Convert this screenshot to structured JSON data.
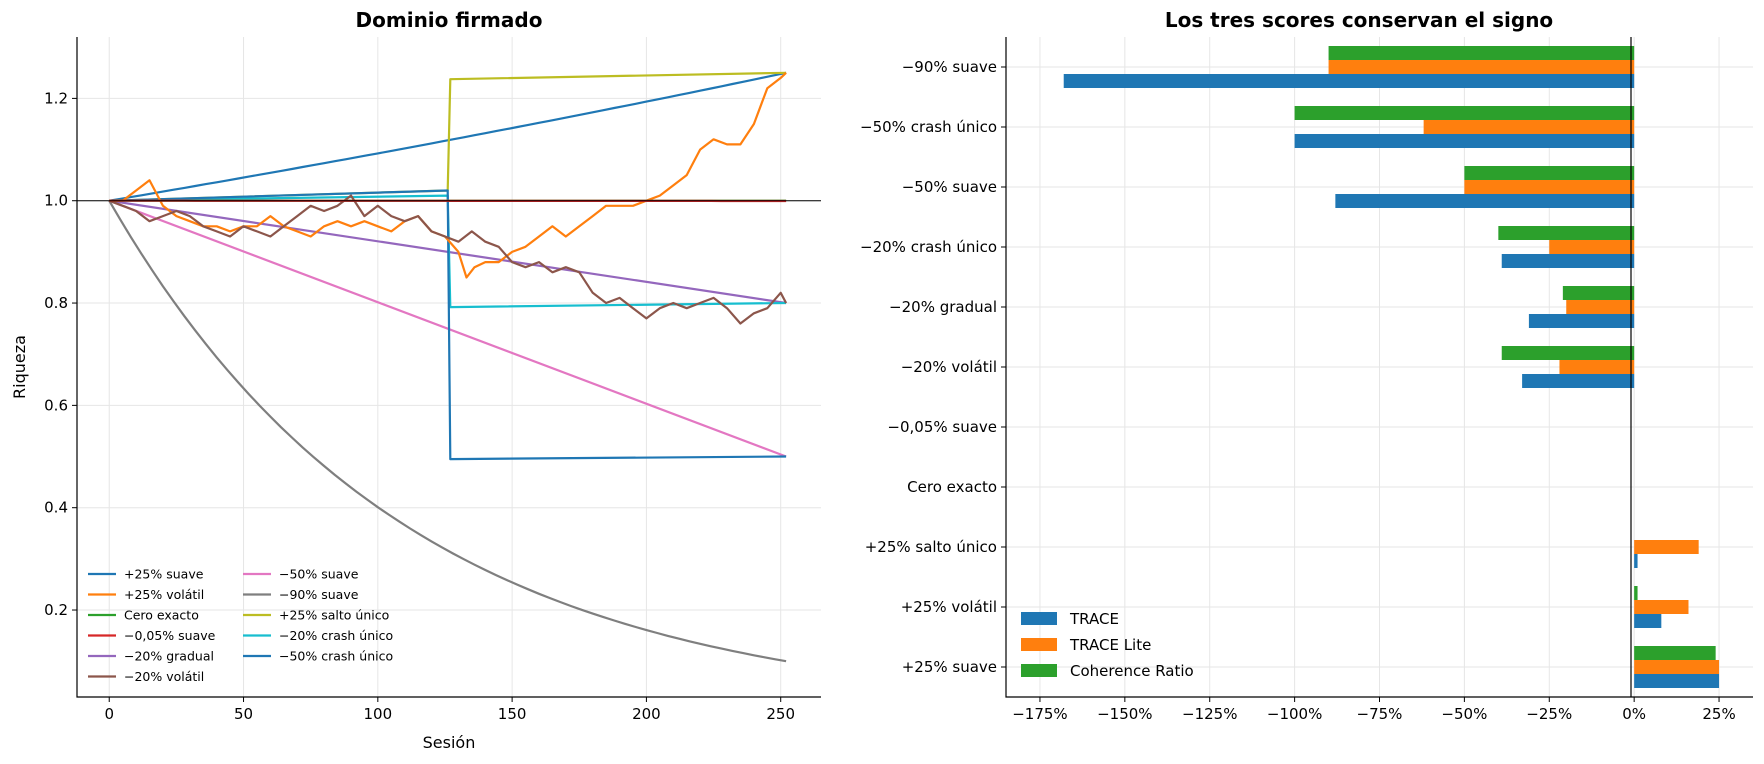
{
  "chart_data": [
    {
      "type": "line",
      "title": "Dominio firmado",
      "xlabel": "Sesión",
      "ylabel": "Riqueza",
      "xlim": [
        -12,
        265
      ],
      "ylim": [
        0.03,
        1.32
      ],
      "xticks": [
        0,
        50,
        100,
        150,
        200,
        250
      ],
      "xtick_labels": [
        "0",
        "50",
        "100",
        "150",
        "200",
        "250"
      ],
      "yticks": [
        0.2,
        0.4,
        0.6,
        0.8,
        1.0,
        1.2
      ],
      "ytick_labels": [
        "0.2",
        "0.4",
        "0.6",
        "0.8",
        "1.0",
        "1.2"
      ],
      "hline": 1.0,
      "grid": true,
      "legend_position": "lower-left",
      "series": [
        {
          "name": "+25% suave",
          "color": "#1f77b4",
          "kind": "exp",
          "end": 1.25
        },
        {
          "name": "+25% volátil",
          "color": "#ff7f0e",
          "kind": "points",
          "points": [
            [
              0,
              1.0
            ],
            [
              5,
              1.0
            ],
            [
              10,
              1.02
            ],
            [
              15,
              1.04
            ],
            [
              20,
              0.99
            ],
            [
              25,
              0.97
            ],
            [
              30,
              0.96
            ],
            [
              35,
              0.95
            ],
            [
              40,
              0.95
            ],
            [
              45,
              0.94
            ],
            [
              50,
              0.95
            ],
            [
              55,
              0.95
            ],
            [
              60,
              0.97
            ],
            [
              65,
              0.95
            ],
            [
              70,
              0.94
            ],
            [
              75,
              0.93
            ],
            [
              80,
              0.95
            ],
            [
              85,
              0.96
            ],
            [
              90,
              0.95
            ],
            [
              95,
              0.96
            ],
            [
              100,
              0.95
            ],
            [
              105,
              0.94
            ],
            [
              110,
              0.96
            ],
            [
              115,
              0.97
            ],
            [
              120,
              0.94
            ],
            [
              125,
              0.93
            ],
            [
              130,
              0.9
            ],
            [
              133,
              0.85
            ],
            [
              136,
              0.87
            ],
            [
              140,
              0.88
            ],
            [
              145,
              0.88
            ],
            [
              150,
              0.9
            ],
            [
              155,
              0.91
            ],
            [
              160,
              0.93
            ],
            [
              165,
              0.95
            ],
            [
              170,
              0.93
            ],
            [
              175,
              0.95
            ],
            [
              180,
              0.97
            ],
            [
              185,
              0.99
            ],
            [
              190,
              0.99
            ],
            [
              195,
              0.99
            ],
            [
              200,
              1.0
            ],
            [
              205,
              1.01
            ],
            [
              210,
              1.03
            ],
            [
              215,
              1.05
            ],
            [
              220,
              1.1
            ],
            [
              225,
              1.12
            ],
            [
              230,
              1.11
            ],
            [
              235,
              1.11
            ],
            [
              240,
              1.15
            ],
            [
              245,
              1.22
            ],
            [
              250,
              1.24
            ],
            [
              252,
              1.25
            ]
          ]
        },
        {
          "name": "Cero exacto",
          "color": "#2ca02c",
          "kind": "exp",
          "end": 1.0
        },
        {
          "name": "−0,05% suave",
          "color": "#d62728",
          "kind": "exp",
          "end": 0.9995
        },
        {
          "name": "−20% gradual",
          "color": "#9467bd",
          "kind": "linear",
          "end": 0.8
        },
        {
          "name": "−20% volátil",
          "color": "#8c564b",
          "kind": "points",
          "points": [
            [
              0,
              1.0
            ],
            [
              5,
              0.99
            ],
            [
              10,
              0.98
            ],
            [
              15,
              0.96
            ],
            [
              20,
              0.97
            ],
            [
              25,
              0.98
            ],
            [
              30,
              0.97
            ],
            [
              35,
              0.95
            ],
            [
              40,
              0.94
            ],
            [
              45,
              0.93
            ],
            [
              50,
              0.95
            ],
            [
              55,
              0.94
            ],
            [
              60,
              0.93
            ],
            [
              65,
              0.95
            ],
            [
              70,
              0.97
            ],
            [
              75,
              0.99
            ],
            [
              80,
              0.98
            ],
            [
              85,
              0.99
            ],
            [
              90,
              1.01
            ],
            [
              95,
              0.97
            ],
            [
              100,
              0.99
            ],
            [
              105,
              0.97
            ],
            [
              110,
              0.96
            ],
            [
              115,
              0.97
            ],
            [
              120,
              0.94
            ],
            [
              125,
              0.93
            ],
            [
              130,
              0.92
            ],
            [
              135,
              0.94
            ],
            [
              140,
              0.92
            ],
            [
              145,
              0.91
            ],
            [
              150,
              0.88
            ],
            [
              155,
              0.87
            ],
            [
              160,
              0.88
            ],
            [
              165,
              0.86
            ],
            [
              170,
              0.87
            ],
            [
              175,
              0.86
            ],
            [
              180,
              0.82
            ],
            [
              185,
              0.8
            ],
            [
              190,
              0.81
            ],
            [
              195,
              0.79
            ],
            [
              200,
              0.77
            ],
            [
              205,
              0.79
            ],
            [
              210,
              0.8
            ],
            [
              215,
              0.79
            ],
            [
              220,
              0.8
            ],
            [
              225,
              0.81
            ],
            [
              230,
              0.79
            ],
            [
              235,
              0.76
            ],
            [
              240,
              0.78
            ],
            [
              245,
              0.79
            ],
            [
              250,
              0.82
            ],
            [
              252,
              0.8
            ]
          ]
        },
        {
          "name": "−50% suave",
          "color": "#e377c2",
          "kind": "linear",
          "end": 0.5
        },
        {
          "name": "−90% suave",
          "color": "#7f7f7f",
          "kind": "exp",
          "end": 0.1
        },
        {
          "name": "+25% salto único",
          "color": "#bcbd22",
          "kind": "jump",
          "before": 1.0,
          "after": 1.25
        },
        {
          "name": "−20% crash único",
          "color": "#17becf",
          "kind": "jump",
          "before": 1.0,
          "after": 0.8
        },
        {
          "name": "−50% crash único",
          "color": "#1f77b4",
          "kind": "jump",
          "before": 1.0,
          "after": 0.5
        }
      ]
    },
    {
      "type": "bar",
      "orientation": "horizontal",
      "title": "Los tres scores conservan el signo",
      "xlim": [
        -185,
        35
      ],
      "xticks": [
        -175,
        -150,
        -125,
        -100,
        -75,
        -50,
        -25,
        0,
        25
      ],
      "xtick_labels": [
        "−175%",
        "−150%",
        "−125%",
        "−100%",
        "−75%",
        "−50%",
        "−25%",
        "0%",
        "25%"
      ],
      "categories": [
        "−90% suave",
        "−50% crash único",
        "−50% suave",
        "−20% crash único",
        "−20% gradual",
        "−20% volátil",
        "−0,05% suave",
        "Cero exacto",
        "+25% salto único",
        "+25% volátil",
        "+25% suave"
      ],
      "grid": true,
      "legend_position": "lower-left",
      "series": [
        {
          "name": "TRACE",
          "color": "#1f77b4",
          "values": [
            -168,
            -100,
            -88,
            -39,
            -31,
            -33,
            0,
            0,
            1,
            8,
            25
          ]
        },
        {
          "name": "TRACE Lite",
          "color": "#ff7f0e",
          "values": [
            -90,
            -62,
            -50,
            -25,
            -20,
            -22,
            0,
            0,
            19,
            16,
            25
          ]
        },
        {
          "name": "Coherence Ratio",
          "color": "#2ca02c",
          "values": [
            -90,
            -100,
            -50,
            -40,
            -21,
            -39,
            0,
            0,
            0,
            1,
            24
          ]
        }
      ]
    }
  ]
}
